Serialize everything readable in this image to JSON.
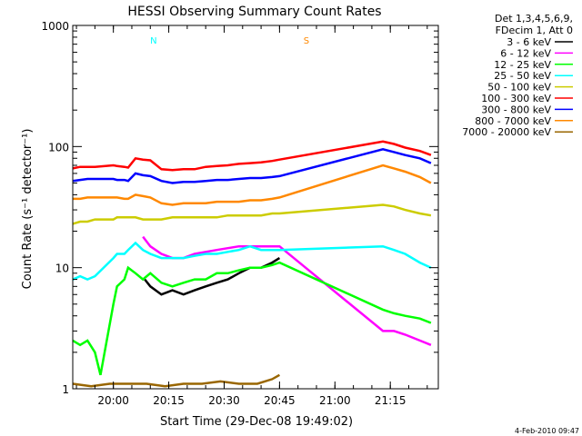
{
  "chart_data": {
    "type": "line",
    "title": "HESSI Observing Summary Count Rates",
    "xlabel": "Start Time (29-Dec-08 19:49:02)",
    "ylabel": "Count Rate (s⁻¹ detector⁻¹)",
    "yscale": "log",
    "ylim": [
      1,
      1000
    ],
    "xlim_minutes": [
      0,
      99
    ],
    "x_ticks": [
      "20:00",
      "20:15",
      "20:30",
      "20:45",
      "21:00",
      "21:15"
    ],
    "x_tick_minutes": [
      11,
      26,
      41,
      56,
      71,
      86
    ],
    "y_ticks": [
      "1",
      "10",
      "100",
      "1000"
    ],
    "y_tick_values": [
      1,
      10,
      100,
      1000
    ],
    "legend_header": [
      "Det 1,3,4,5,6,9,",
      "FDecim 1, Att 0"
    ],
    "legend_position": "right",
    "flag_labels": [
      {
        "text": "N",
        "minute": 19.5,
        "color": "#00ffff"
      },
      {
        "text": "S",
        "minute": 61,
        "color": "#ff8800"
      }
    ],
    "timestamp": "4-Feb-2010 09:47",
    "series": [
      {
        "name": "3 - 6 keV",
        "color": "#000000",
        "points": [
          [
            19.5,
            8
          ],
          [
            21,
            7
          ],
          [
            24,
            6
          ],
          [
            27,
            6.5
          ],
          [
            30,
            6
          ],
          [
            33,
            6.5
          ],
          [
            36,
            7
          ],
          [
            39,
            7.5
          ],
          [
            42,
            8
          ],
          [
            45,
            9
          ],
          [
            48,
            10
          ],
          [
            51,
            10
          ],
          [
            54,
            11
          ],
          [
            56,
            12
          ]
        ]
      },
      {
        "name": "6 - 12 keV",
        "color": "#ff00ff",
        "points": [
          [
            19,
            18
          ],
          [
            21,
            15
          ],
          [
            24,
            13
          ],
          [
            27,
            12
          ],
          [
            30,
            12
          ],
          [
            33,
            13
          ],
          [
            36,
            13.5
          ],
          [
            39,
            14
          ],
          [
            42,
            14.5
          ],
          [
            45,
            15
          ],
          [
            48,
            15
          ],
          [
            51,
            15
          ],
          [
            54,
            15
          ],
          [
            56,
            15
          ],
          [
            84,
            3
          ],
          [
            87,
            3
          ],
          [
            90,
            2.8
          ],
          [
            94,
            2.5
          ],
          [
            97,
            2.3
          ]
        ]
      },
      {
        "name": "12 - 25 keV",
        "color": "#00ff00",
        "points": [
          [
            0,
            2.5
          ],
          [
            2,
            2.3
          ],
          [
            4,
            2.5
          ],
          [
            6,
            2
          ],
          [
            7.5,
            1.3
          ],
          [
            11,
            5
          ],
          [
            12,
            7
          ],
          [
            14,
            8
          ],
          [
            15,
            10
          ],
          [
            17,
            9
          ],
          [
            19,
            8
          ],
          [
            21,
            9
          ],
          [
            24,
            7.5
          ],
          [
            27,
            7
          ],
          [
            30,
            7.5
          ],
          [
            33,
            8
          ],
          [
            36,
            8
          ],
          [
            39,
            9
          ],
          [
            42,
            9
          ],
          [
            45,
            9.5
          ],
          [
            48,
            10
          ],
          [
            51,
            10
          ],
          [
            54,
            10.5
          ],
          [
            56,
            11
          ],
          [
            84,
            4.5
          ],
          [
            87,
            4.2
          ],
          [
            90,
            4
          ],
          [
            94,
            3.8
          ],
          [
            97,
            3.5
          ]
        ]
      },
      {
        "name": "25 - 50 keV",
        "color": "#00ffff",
        "points": [
          [
            0,
            8
          ],
          [
            2,
            8.5
          ],
          [
            4,
            8
          ],
          [
            6,
            8.5
          ],
          [
            11,
            12
          ],
          [
            12,
            13
          ],
          [
            14,
            13
          ],
          [
            15,
            14
          ],
          [
            17,
            16
          ],
          [
            19,
            14
          ],
          [
            21,
            13
          ],
          [
            24,
            12
          ],
          [
            27,
            12
          ],
          [
            30,
            12
          ],
          [
            33,
            12.5
          ],
          [
            36,
            13
          ],
          [
            39,
            13
          ],
          [
            42,
            13.5
          ],
          [
            45,
            14
          ],
          [
            48,
            15
          ],
          [
            51,
            14
          ],
          [
            54,
            14
          ],
          [
            56,
            14
          ],
          [
            84,
            15
          ],
          [
            87,
            14
          ],
          [
            90,
            13
          ],
          [
            94,
            11
          ],
          [
            97,
            10
          ]
        ]
      },
      {
        "name": "50 - 100 keV",
        "color": "#cccc00",
        "points": [
          [
            0,
            23
          ],
          [
            2,
            24
          ],
          [
            4,
            24
          ],
          [
            6,
            25
          ],
          [
            11,
            25
          ],
          [
            12,
            26
          ],
          [
            14,
            26
          ],
          [
            15,
            26
          ],
          [
            17,
            26
          ],
          [
            19,
            25
          ],
          [
            21,
            25
          ],
          [
            24,
            25
          ],
          [
            27,
            26
          ],
          [
            30,
            26
          ],
          [
            33,
            26
          ],
          [
            36,
            26
          ],
          [
            39,
            26
          ],
          [
            42,
            27
          ],
          [
            45,
            27
          ],
          [
            48,
            27
          ],
          [
            51,
            27
          ],
          [
            54,
            28
          ],
          [
            56,
            28
          ],
          [
            84,
            33
          ],
          [
            87,
            32
          ],
          [
            90,
            30
          ],
          [
            94,
            28
          ],
          [
            97,
            27
          ]
        ]
      },
      {
        "name": "100 - 300 keV",
        "color": "#ff0000",
        "points": [
          [
            0,
            66
          ],
          [
            2,
            68
          ],
          [
            4,
            68
          ],
          [
            6,
            68
          ],
          [
            11,
            70
          ],
          [
            12,
            69
          ],
          [
            14,
            68
          ],
          [
            15,
            67
          ],
          [
            17,
            80
          ],
          [
            19,
            78
          ],
          [
            21,
            77
          ],
          [
            24,
            65
          ],
          [
            27,
            64
          ],
          [
            30,
            65
          ],
          [
            33,
            65
          ],
          [
            36,
            68
          ],
          [
            39,
            69
          ],
          [
            42,
            70
          ],
          [
            45,
            72
          ],
          [
            48,
            73
          ],
          [
            51,
            74
          ],
          [
            54,
            76
          ],
          [
            56,
            78
          ],
          [
            84,
            110
          ],
          [
            87,
            105
          ],
          [
            90,
            98
          ],
          [
            94,
            92
          ],
          [
            97,
            85
          ]
        ]
      },
      {
        "name": "300 - 800 keV",
        "color": "#0000ff",
        "points": [
          [
            0,
            52
          ],
          [
            2,
            53
          ],
          [
            4,
            54
          ],
          [
            6,
            54
          ],
          [
            11,
            54
          ],
          [
            12,
            53
          ],
          [
            14,
            53
          ],
          [
            15,
            52
          ],
          [
            17,
            60
          ],
          [
            19,
            58
          ],
          [
            21,
            57
          ],
          [
            24,
            52
          ],
          [
            27,
            50
          ],
          [
            30,
            51
          ],
          [
            33,
            51
          ],
          [
            36,
            52
          ],
          [
            39,
            53
          ],
          [
            42,
            53
          ],
          [
            45,
            54
          ],
          [
            48,
            55
          ],
          [
            51,
            55
          ],
          [
            54,
            56
          ],
          [
            56,
            57
          ],
          [
            84,
            95
          ],
          [
            87,
            90
          ],
          [
            90,
            85
          ],
          [
            94,
            80
          ],
          [
            97,
            73
          ]
        ]
      },
      {
        "name": "800 - 7000 keV",
        "color": "#ff8800",
        "points": [
          [
            0,
            37
          ],
          [
            2,
            37
          ],
          [
            4,
            38
          ],
          [
            6,
            38
          ],
          [
            11,
            38
          ],
          [
            12,
            38
          ],
          [
            14,
            37
          ],
          [
            15,
            37
          ],
          [
            17,
            40
          ],
          [
            19,
            39
          ],
          [
            21,
            38
          ],
          [
            24,
            34
          ],
          [
            27,
            33
          ],
          [
            30,
            34
          ],
          [
            33,
            34
          ],
          [
            36,
            34
          ],
          [
            39,
            35
          ],
          [
            42,
            35
          ],
          [
            45,
            35
          ],
          [
            48,
            36
          ],
          [
            51,
            36
          ],
          [
            54,
            37
          ],
          [
            56,
            38
          ],
          [
            84,
            70
          ],
          [
            87,
            66
          ],
          [
            90,
            62
          ],
          [
            94,
            56
          ],
          [
            97,
            50
          ]
        ]
      },
      {
        "name": "7000 - 20000 keV",
        "color": "#996600",
        "points": [
          [
            0,
            1.1
          ],
          [
            5,
            1.05
          ],
          [
            10,
            1.1
          ],
          [
            20,
            1.1
          ],
          [
            25,
            1.05
          ],
          [
            30,
            1.1
          ],
          [
            35,
            1.1
          ],
          [
            40,
            1.15
          ],
          [
            45,
            1.1
          ],
          [
            50,
            1.1
          ],
          [
            54,
            1.2
          ],
          [
            56,
            1.3
          ]
        ]
      }
    ]
  }
}
